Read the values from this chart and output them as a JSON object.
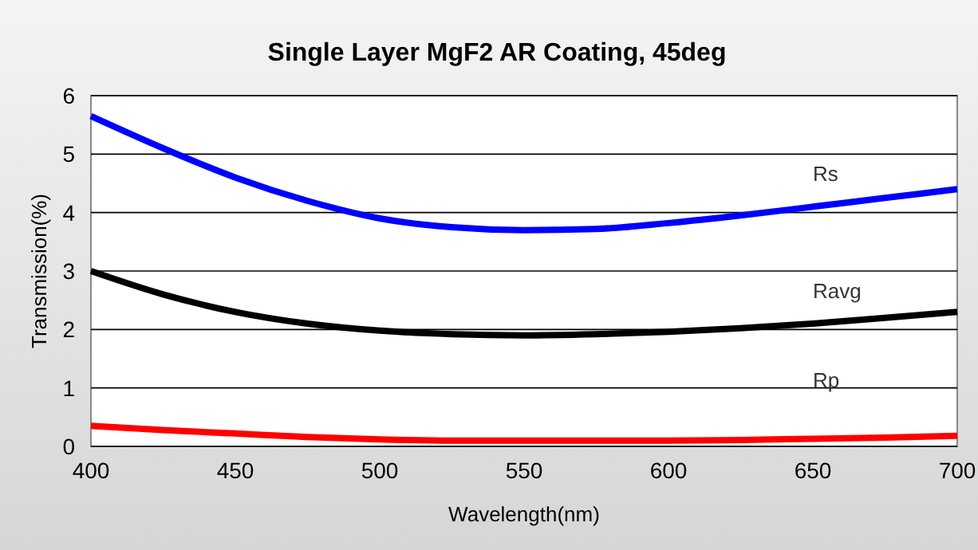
{
  "chart_data": {
    "type": "line",
    "title": "Single Layer MgF2 AR Coating, 45deg",
    "xlabel": "Wavelength(nm)",
    "ylabel": "Transmission(%)",
    "x": [
      400,
      425,
      450,
      475,
      500,
      525,
      550,
      575,
      600,
      625,
      650,
      675,
      700
    ],
    "series": [
      {
        "name": "Rs",
        "color": "#0000ff",
        "values": [
          5.65,
          5.1,
          4.6,
          4.2,
          3.9,
          3.75,
          3.7,
          3.72,
          3.82,
          3.95,
          4.1,
          4.25,
          4.4
        ]
      },
      {
        "name": "Ravg",
        "color": "#000000",
        "values": [
          3.0,
          2.6,
          2.3,
          2.1,
          1.98,
          1.92,
          1.9,
          1.92,
          1.96,
          2.02,
          2.1,
          2.2,
          2.3
        ]
      },
      {
        "name": "Rp",
        "color": "#ff0000",
        "values": [
          0.35,
          0.28,
          0.22,
          0.16,
          0.12,
          0.1,
          0.1,
          0.1,
          0.1,
          0.11,
          0.13,
          0.15,
          0.18
        ]
      }
    ],
    "xlim": [
      400,
      700
    ],
    "xticks": [
      400,
      450,
      500,
      550,
      600,
      650,
      700
    ],
    "ylim": [
      0,
      6
    ],
    "yticks": [
      0,
      1,
      2,
      3,
      4,
      5,
      6
    ],
    "grid": "y",
    "marker": "none",
    "line_style": "solid"
  }
}
